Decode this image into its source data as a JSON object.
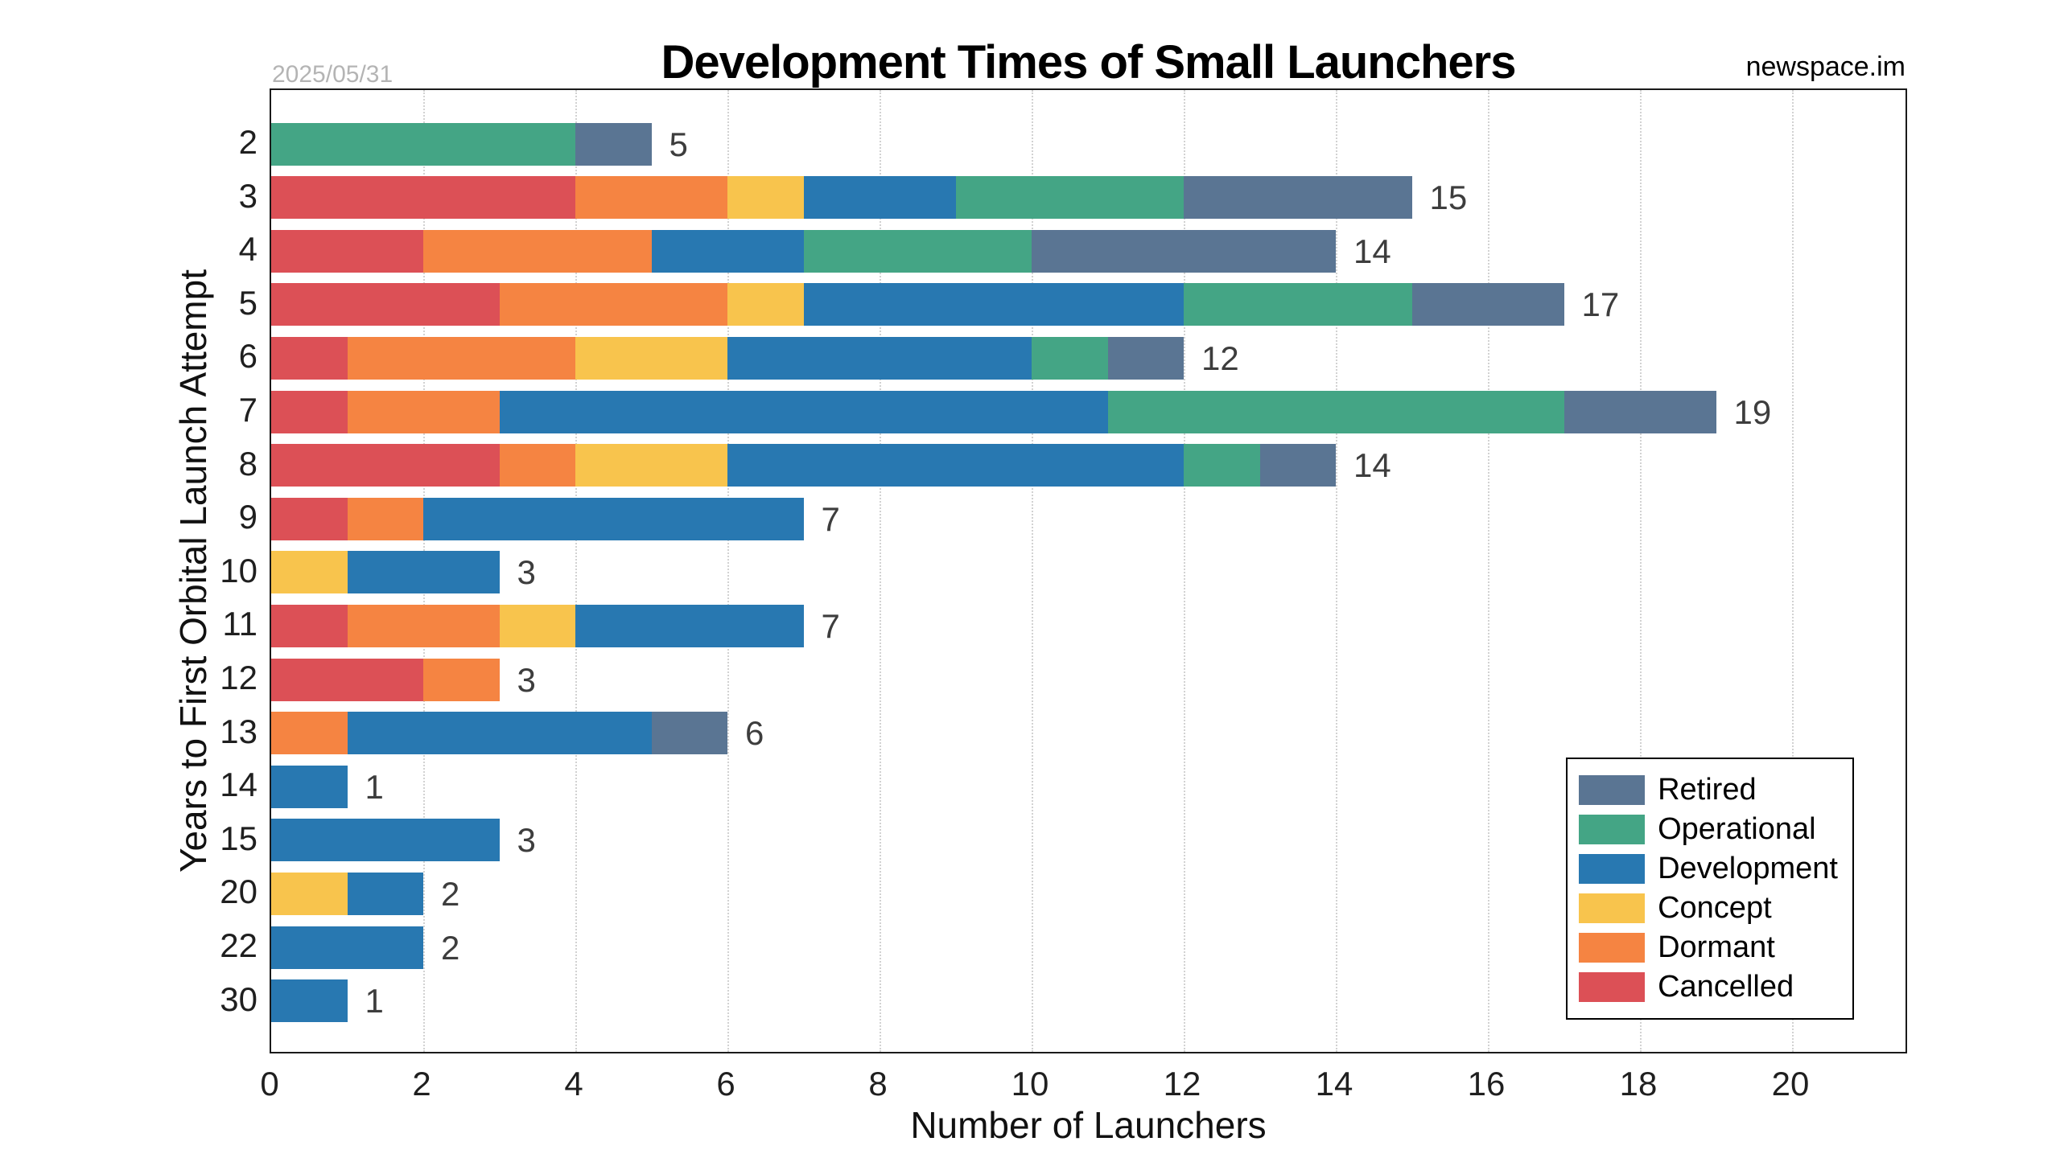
{
  "header": {
    "title": "Development Times of Small Launchers",
    "timestamp": "2025/05/31",
    "watermark": "newspace.im"
  },
  "chart_data": {
    "type": "bar",
    "orientation": "horizontal",
    "stacked": true,
    "title": "Development Times of Small Launchers",
    "xlabel": "Number of Launchers",
    "ylabel": "Years to First Orbital Launch Attempt",
    "xlim": [
      0,
      21.5
    ],
    "xticks": [
      0,
      2,
      4,
      6,
      8,
      10,
      12,
      14,
      16,
      18,
      20
    ],
    "grid": "vertical dotted gridlines at even x values",
    "legend_position": "lower right",
    "categories": [
      "2",
      "3",
      "4",
      "5",
      "6",
      "7",
      "8",
      "9",
      "10",
      "11",
      "12",
      "13",
      "14",
      "15",
      "20",
      "22",
      "30"
    ],
    "series": [
      {
        "name": "Cancelled",
        "color": "#dc5056",
        "values": [
          0,
          4,
          2,
          3,
          1,
          1,
          3,
          1,
          0,
          1,
          2,
          0,
          0,
          0,
          0,
          0,
          0
        ]
      },
      {
        "name": "Dormant",
        "color": "#f58442",
        "values": [
          0,
          2,
          3,
          3,
          3,
          2,
          1,
          1,
          0,
          2,
          1,
          1,
          0,
          0,
          0,
          0,
          0
        ]
      },
      {
        "name": "Concept",
        "color": "#f8c44d",
        "values": [
          0,
          1,
          0,
          1,
          2,
          0,
          2,
          0,
          1,
          1,
          0,
          0,
          0,
          0,
          1,
          0,
          0
        ]
      },
      {
        "name": "Development",
        "color": "#2878b1",
        "values": [
          0,
          2,
          2,
          5,
          4,
          8,
          6,
          5,
          2,
          3,
          0,
          4,
          1,
          3,
          1,
          2,
          1
        ]
      },
      {
        "name": "Operational",
        "color": "#44a585",
        "values": [
          4,
          3,
          3,
          3,
          1,
          6,
          1,
          0,
          0,
          0,
          0,
          0,
          0,
          0,
          0,
          0,
          0
        ]
      },
      {
        "name": "Retired",
        "color": "#5a7593",
        "values": [
          1,
          3,
          4,
          2,
          1,
          2,
          1,
          0,
          0,
          0,
          0,
          1,
          0,
          0,
          0,
          0,
          0
        ]
      }
    ],
    "totals": [
      5,
      15,
      14,
      17,
      12,
      19,
      14,
      7,
      3,
      7,
      3,
      6,
      1,
      3,
      2,
      2,
      1
    ],
    "legend": [
      "Retired",
      "Operational",
      "Development",
      "Concept",
      "Dormant",
      "Cancelled"
    ]
  }
}
